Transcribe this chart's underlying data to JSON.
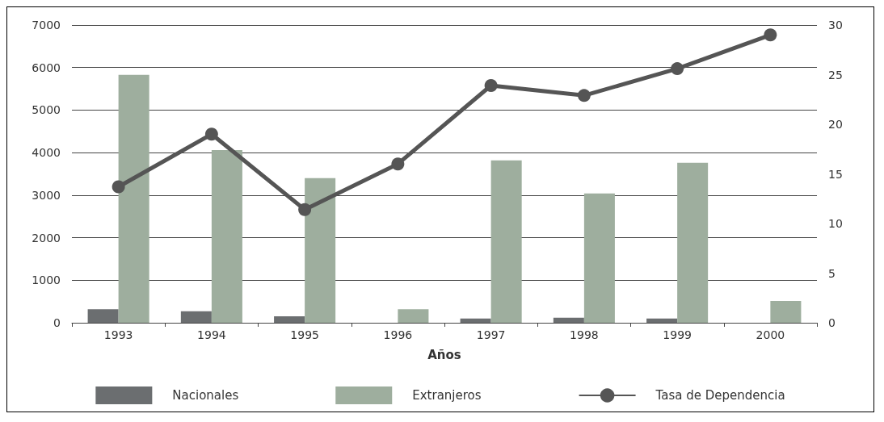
{
  "chart_data": {
    "type": "bar",
    "xlabel": "Años",
    "categories": [
      "1993",
      "1994",
      "1995",
      "1996",
      "1997",
      "1998",
      "1999",
      "2000"
    ],
    "series": [
      {
        "name": "Nacionales",
        "color": "#6b6e70",
        "values": [
          320,
          270,
          150,
          0,
          100,
          120,
          100,
          0
        ]
      },
      {
        "name": "Extranjeros",
        "color": "#9eae9e",
        "values": [
          5830,
          4060,
          3400,
          320,
          3820,
          3040,
          3760,
          510
        ]
      },
      {
        "name": "Tasa de Dependencia",
        "type": "line",
        "axis": "y2",
        "color": "#555555",
        "values": [
          13.7,
          19.0,
          11.4,
          16.0,
          23.9,
          22.9,
          25.6,
          29.0
        ]
      }
    ],
    "ylim": [
      0,
      7000
    ],
    "yticks": [
      0,
      1000,
      2000,
      3000,
      4000,
      5000,
      6000,
      7000
    ],
    "y2lim": [
      0,
      30
    ],
    "y2ticks": [
      0,
      5,
      10,
      15,
      20,
      25,
      30
    ],
    "grid": "y",
    "legend": "bottom",
    "marker": "circle",
    "line_style": "solid"
  }
}
